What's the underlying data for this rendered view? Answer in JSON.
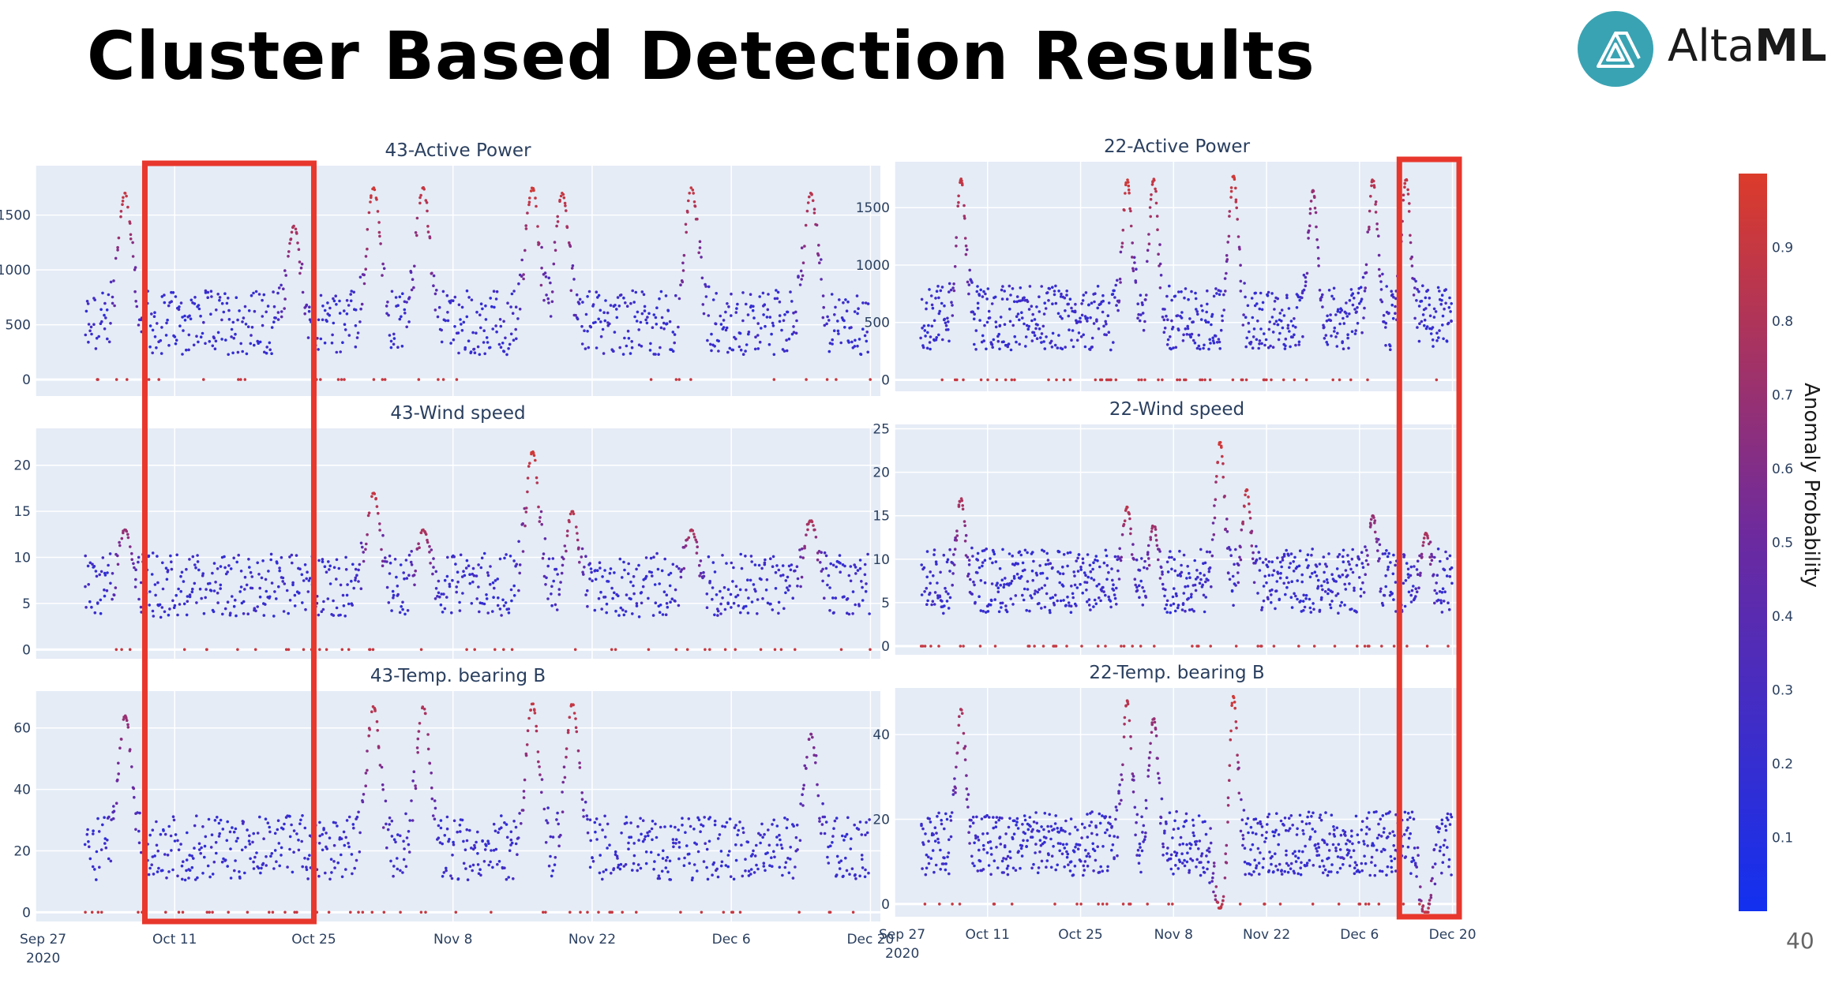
{
  "page": {
    "title": "Cluster Based Detection Results",
    "logo_text_light": "Alta",
    "logo_text_bold": "ML",
    "page_number": "40",
    "logo_color": "#3aa3b3"
  },
  "colorscale": {
    "low": "#1230f0",
    "mid": "#6b2aa0",
    "high": "#dc3b2a"
  },
  "colorbar": {
    "title": "Anomaly Probability",
    "ticks": [
      "0.1",
      "0.2",
      "0.3",
      "0.4",
      "0.5",
      "0.6",
      "0.7",
      "0.8",
      "0.9"
    ],
    "tick_values": [
      0.1,
      0.2,
      0.3,
      0.4,
      0.5,
      0.6,
      0.7,
      0.8,
      0.9
    ],
    "range": [
      0,
      1
    ]
  },
  "x_axis": {
    "tick_labels": [
      "Sep 27",
      "Oct 11",
      "Oct 25",
      "Nov 8",
      "Nov 22",
      "Dec 6",
      "Dec 20"
    ],
    "year_label": "2020",
    "range": [
      "2020-09-27",
      "2020-12-21"
    ]
  },
  "highlights": [
    {
      "side": "left",
      "x_range": [
        "2020-10-08",
        "2020-10-25"
      ]
    },
    {
      "side": "right",
      "x_range": [
        "2020-12-12",
        "2020-12-21"
      ]
    }
  ],
  "chart_data": [
    {
      "type": "scatter",
      "title": "43-Active Power",
      "ylim": [
        -150,
        1950
      ],
      "yticks": [
        0,
        500,
        1000,
        1500
      ],
      "series": [
        {
          "x_range": [
            "2020-10-02",
            "2020-12-20"
          ],
          "peaks": [
            [
              "2020-10-06",
              1700,
              0.9
            ],
            [
              "2020-10-23",
              1400,
              0.8
            ],
            [
              "2020-10-31",
              1750,
              0.95
            ],
            [
              "2020-11-05",
              1750,
              0.9
            ],
            [
              "2020-11-16",
              1750,
              0.95
            ],
            [
              "2020-11-19",
              1700,
              0.9
            ],
            [
              "2020-12-02",
              1750,
              0.9
            ],
            [
              "2020-12-14",
              1700,
              0.85
            ]
          ]
        }
      ]
    },
    {
      "type": "scatter",
      "title": "43-Wind speed",
      "ylim": [
        -1,
        24
      ],
      "yticks": [
        0,
        5,
        10,
        15,
        20
      ],
      "series": [
        {
          "x_range": [
            "2020-10-02",
            "2020-12-20"
          ],
          "peaks": [
            [
              "2020-10-06",
              13,
              0.7
            ],
            [
              "2020-10-31",
              17,
              0.9
            ],
            [
              "2020-11-05",
              13,
              0.8
            ],
            [
              "2020-11-16",
              21.5,
              0.95
            ],
            [
              "2020-11-20",
              15,
              0.85
            ],
            [
              "2020-12-02",
              13,
              0.8
            ],
            [
              "2020-12-14",
              14,
              0.8
            ]
          ]
        }
      ]
    },
    {
      "type": "scatter",
      "title": "43-Temp. bearing B",
      "ylim": [
        -3,
        72
      ],
      "yticks": [
        0,
        20,
        40,
        60
      ],
      "series": [
        {
          "x_range": [
            "2020-10-02",
            "2020-12-20"
          ],
          "peaks": [
            [
              "2020-10-06",
              64,
              0.7
            ],
            [
              "2020-10-31",
              67,
              0.85
            ],
            [
              "2020-11-05",
              67,
              0.8
            ],
            [
              "2020-11-16",
              68,
              0.9
            ],
            [
              "2020-11-20",
              68,
              0.9
            ],
            [
              "2020-12-14",
              58,
              0.6
            ]
          ]
        }
      ]
    },
    {
      "type": "scatter",
      "title": "22-Active Power",
      "ylim": [
        -100,
        1900
      ],
      "yticks": [
        0,
        500,
        1000,
        1500
      ],
      "series": [
        {
          "x_range": [
            "2020-10-01",
            "2020-12-20"
          ],
          "peaks": [
            [
              "2020-10-07",
              1750,
              0.9
            ],
            [
              "2020-11-01",
              1750,
              0.95
            ],
            [
              "2020-11-05",
              1750,
              0.9
            ],
            [
              "2020-11-17",
              1780,
              0.95
            ],
            [
              "2020-11-29",
              1650,
              0.7
            ],
            [
              "2020-12-08",
              1750,
              0.85
            ],
            [
              "2020-12-13",
              1750,
              0.9
            ]
          ]
        }
      ]
    },
    {
      "type": "scatter",
      "title": "22-Wind speed",
      "ylim": [
        -1,
        25.5
      ],
      "yticks": [
        0,
        5,
        10,
        15,
        20,
        25
      ],
      "series": [
        {
          "x_range": [
            "2020-10-01",
            "2020-12-20"
          ],
          "peaks": [
            [
              "2020-10-07",
              17,
              0.8
            ],
            [
              "2020-11-01",
              16,
              0.85
            ],
            [
              "2020-11-05",
              14,
              0.75
            ],
            [
              "2020-11-15",
              23.5,
              0.95
            ],
            [
              "2020-11-19",
              18,
              0.9
            ],
            [
              "2020-12-08",
              15,
              0.7
            ],
            [
              "2020-12-16",
              13,
              0.8
            ]
          ]
        }
      ]
    },
    {
      "type": "scatter",
      "title": "22-Temp. bearing B",
      "ylim": [
        -3,
        51
      ],
      "yticks": [
        0,
        20,
        40
      ],
      "series": [
        {
          "x_range": [
            "2020-10-01",
            "2020-12-20"
          ],
          "peaks": [
            [
              "2020-10-07",
              46,
              0.8
            ],
            [
              "2020-11-01",
              48,
              0.85
            ],
            [
              "2020-11-05",
              44,
              0.7
            ],
            [
              "2020-11-17",
              49,
              0.95
            ],
            [
              "2020-11-15",
              -1,
              0.9
            ],
            [
              "2020-12-16",
              -3,
              0.9
            ]
          ]
        }
      ]
    }
  ]
}
